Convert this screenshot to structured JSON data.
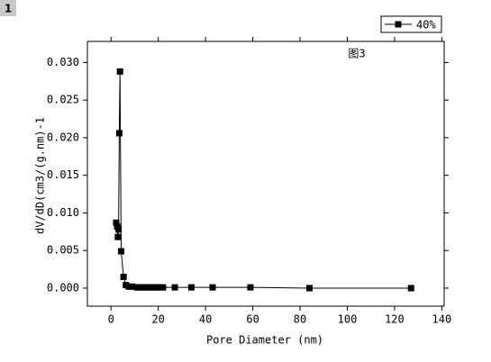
{
  "panel_label": "1",
  "chart_data": {
    "type": "line",
    "annotation": "图3",
    "xlabel": "Pore Diameter (nm)",
    "ylabel": "dV/dD(cm3/(g.nm)-1",
    "x": [
      2.2,
      2.6,
      2.9,
      3.2,
      3.5,
      3.8,
      4.3,
      5.3,
      6.3,
      7.5,
      9,
      11,
      12,
      13,
      14,
      15,
      16,
      17,
      18,
      19,
      20,
      21,
      22,
      27,
      34,
      43,
      59,
      84,
      127
    ],
    "series": [
      {
        "name": "40%",
        "color": "#000000",
        "values": [
          0.0087,
          0.0082,
          0.0068,
          0.0078,
          0.0206,
          0.0288,
          0.0049,
          0.0015,
          0.0004,
          0.0002,
          0.0002,
          0.0001,
          0.0001,
          0.0001,
          0.0001,
          0.0001,
          0.0001,
          0.0001,
          0.0001,
          0.0001,
          0.0001,
          0.0001,
          0.0001,
          0.0001,
          0.0001,
          0.0001,
          0.0001,
          0,
          0
        ]
      }
    ],
    "xlim": [
      -10,
      141
    ],
    "ylim": [
      -0.0024,
      0.0328
    ],
    "xticks": [
      0,
      20,
      40,
      60,
      80,
      100,
      120,
      140
    ],
    "yticks": [
      {
        "value": 0,
        "label": "0.000"
      },
      {
        "value": 0.005,
        "label": "0.005"
      },
      {
        "value": 0.01,
        "label": "0.010"
      },
      {
        "value": 0.015,
        "label": "0.015"
      },
      {
        "value": 0.02,
        "label": "0.020"
      },
      {
        "value": 0.025,
        "label": "0.025"
      },
      {
        "value": 0.03,
        "label": "0.030"
      }
    ],
    "legend": "top-right"
  }
}
